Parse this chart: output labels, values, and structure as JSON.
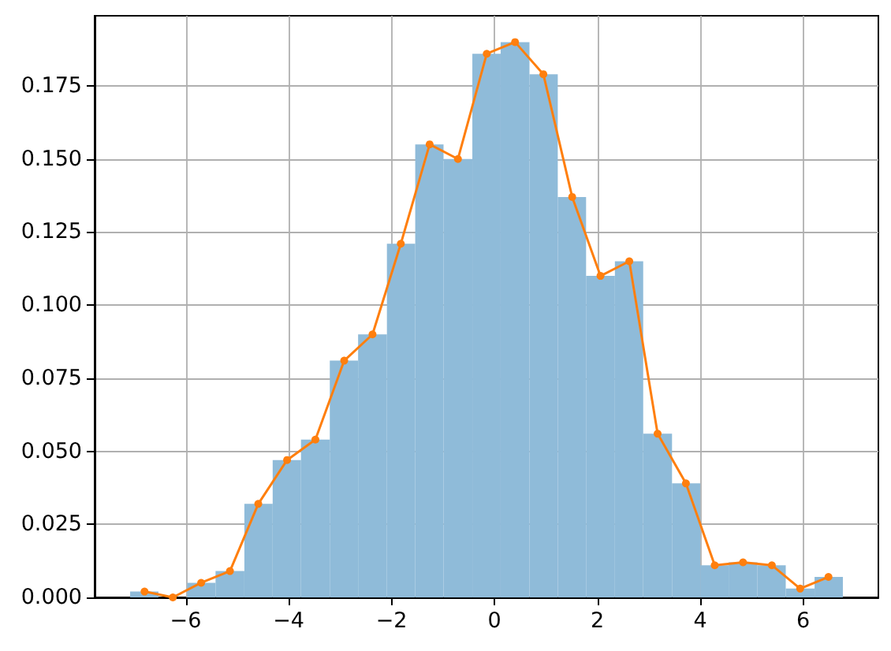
{
  "chart_data": {
    "type": "histogram",
    "bins": [
      -7.08,
      -6.53,
      -5.97,
      -5.42,
      -4.86,
      -4.31,
      -3.76,
      -3.2,
      -2.65,
      -2.09,
      -1.54,
      -0.99,
      -0.43,
      0.12,
      0.68,
      1.23,
      1.78,
      2.34,
      2.89,
      3.45,
      4.0,
      4.55,
      5.11,
      5.66,
      6.22,
      6.77
    ],
    "series": [
      {
        "color": "#8fbbd9",
        "values": [
          0.002,
          0,
          0.005,
          0.009,
          0.032,
          0.047,
          0.054,
          0.081,
          0.09,
          0.121,
          0.155,
          0.15,
          0.186,
          0.19,
          0.179,
          0.137,
          0.11,
          0.115,
          0.056,
          0.039,
          0.011,
          0.012,
          0.011,
          0.003,
          0.007
        ]
      },
      {
        "type": "line",
        "color": "#ff7f0e",
        "x": [
          -6.8,
          -6.25,
          -5.7,
          -5.14,
          -4.59,
          -4.03,
          -3.48,
          -2.92,
          -2.37,
          -1.82,
          -1.26,
          -0.71,
          -0.15,
          0.4,
          0.95,
          1.51,
          2.06,
          2.62,
          3.17,
          3.72,
          4.28,
          4.83,
          5.39,
          5.94,
          6.49
        ],
        "values": [
          0.002,
          0,
          0.005,
          0.009,
          0.032,
          0.047,
          0.054,
          0.081,
          0.09,
          0.121,
          0.155,
          0.15,
          0.186,
          0.19,
          0.179,
          0.137,
          0.11,
          0.115,
          0.056,
          0.039,
          0.011,
          0.012,
          0.011,
          0.003,
          0.007
        ]
      }
    ],
    "xlim": [
      -7.77,
      7.46
    ],
    "xticks": [
      {
        "value": -6,
        "label": "−6"
      },
      {
        "value": -4,
        "label": "−4"
      },
      {
        "value": -2,
        "label": "−2"
      },
      0,
      2,
      4,
      6
    ],
    "ylim": [
      0,
      0.199
    ],
    "yticks": [
      {
        "value": 0,
        "label": "0.000"
      },
      0.025,
      {
        "value": 0.05,
        "label": "0.050"
      },
      0.075,
      {
        "value": 0.1,
        "label": "0.100"
      },
      0.125,
      {
        "value": 0.15,
        "label": "0.150"
      },
      0.175
    ],
    "grid": true,
    "marker": "circle",
    "line_style": "solid"
  }
}
